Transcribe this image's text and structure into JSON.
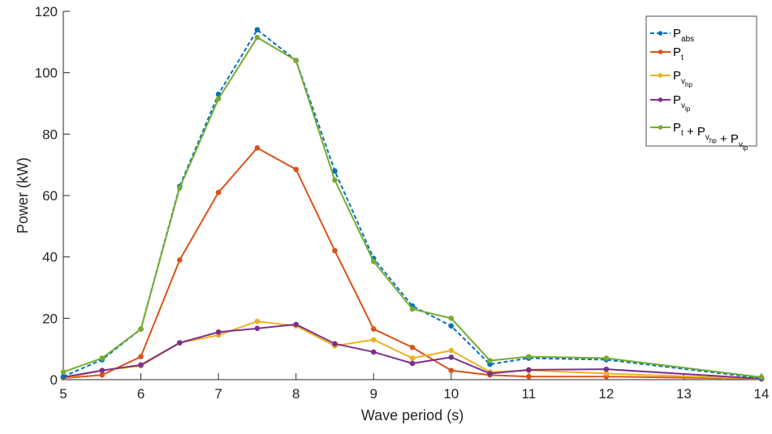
{
  "chart_data": {
    "type": "line",
    "xlabel": "Wave period (s)",
    "ylabel": "Power (kW)",
    "xlim": [
      5,
      14
    ],
    "ylim": [
      0,
      120
    ],
    "xticks": [
      5,
      6,
      7,
      8,
      9,
      10,
      11,
      12,
      13,
      14
    ],
    "yticks": [
      0,
      20,
      40,
      60,
      80,
      100,
      120
    ],
    "grid": false,
    "legend_position": "top-right",
    "x": [
      5,
      5.5,
      6,
      6.5,
      7,
      7.5,
      8,
      8.5,
      9,
      9.5,
      10,
      10.5,
      11,
      12,
      14
    ],
    "series": [
      {
        "name": "P_abs",
        "legend": {
          "base": "P",
          "sub": "abs",
          "parts": []
        },
        "color": "#0072BD",
        "dashed": true,
        "values": [
          1,
          6.5,
          16.5,
          63,
          93,
          114,
          104,
          68,
          39.5,
          24,
          17.5,
          5,
          7,
          6.5,
          0.5
        ]
      },
      {
        "name": "P_t",
        "legend": {
          "base": "P",
          "sub": "t",
          "parts": []
        },
        "color": "#D95319",
        "dashed": false,
        "values": [
          0.5,
          1.5,
          7.5,
          39,
          61,
          75.5,
          68.5,
          42,
          16.5,
          10.5,
          3,
          1.5,
          1,
          1,
          0.3
        ]
      },
      {
        "name": "P_v_hp",
        "legend": {
          "base": "P",
          "sub": "v",
          "subsub": "hp",
          "parts": []
        },
        "color": "#EDB120",
        "dashed": false,
        "values": [
          0.5,
          3,
          4.5,
          12,
          14.5,
          19,
          17.5,
          11,
          13,
          7,
          9.5,
          2.5,
          3,
          2,
          0.2
        ]
      },
      {
        "name": "P_v_lp",
        "legend": {
          "base": "P",
          "sub": "v",
          "subsub": "lp",
          "parts": []
        },
        "color": "#7E2F8E",
        "dashed": false,
        "values": [
          0.8,
          3,
          4.8,
          12,
          15.5,
          16.7,
          18,
          11.7,
          9,
          5.3,
          7.3,
          2,
          3.2,
          3.4,
          0.3
        ]
      },
      {
        "name": "P_t + P_v_hp + P_v_lp",
        "legend": {
          "parts": [
            {
              "base": "P",
              "sub": "t"
            },
            {
              "base": " + P",
              "sub": "v",
              "subsub": "hp"
            },
            {
              "base": " + P",
              "sub": "v",
              "subsub": "lp"
            }
          ]
        },
        "color": "#77AC30",
        "dashed": false,
        "values": [
          2.5,
          7,
          16.5,
          62.5,
          91.5,
          111.5,
          104,
          65,
          38.5,
          23,
          20,
          6.2,
          7.5,
          7,
          0.8
        ]
      }
    ]
  }
}
